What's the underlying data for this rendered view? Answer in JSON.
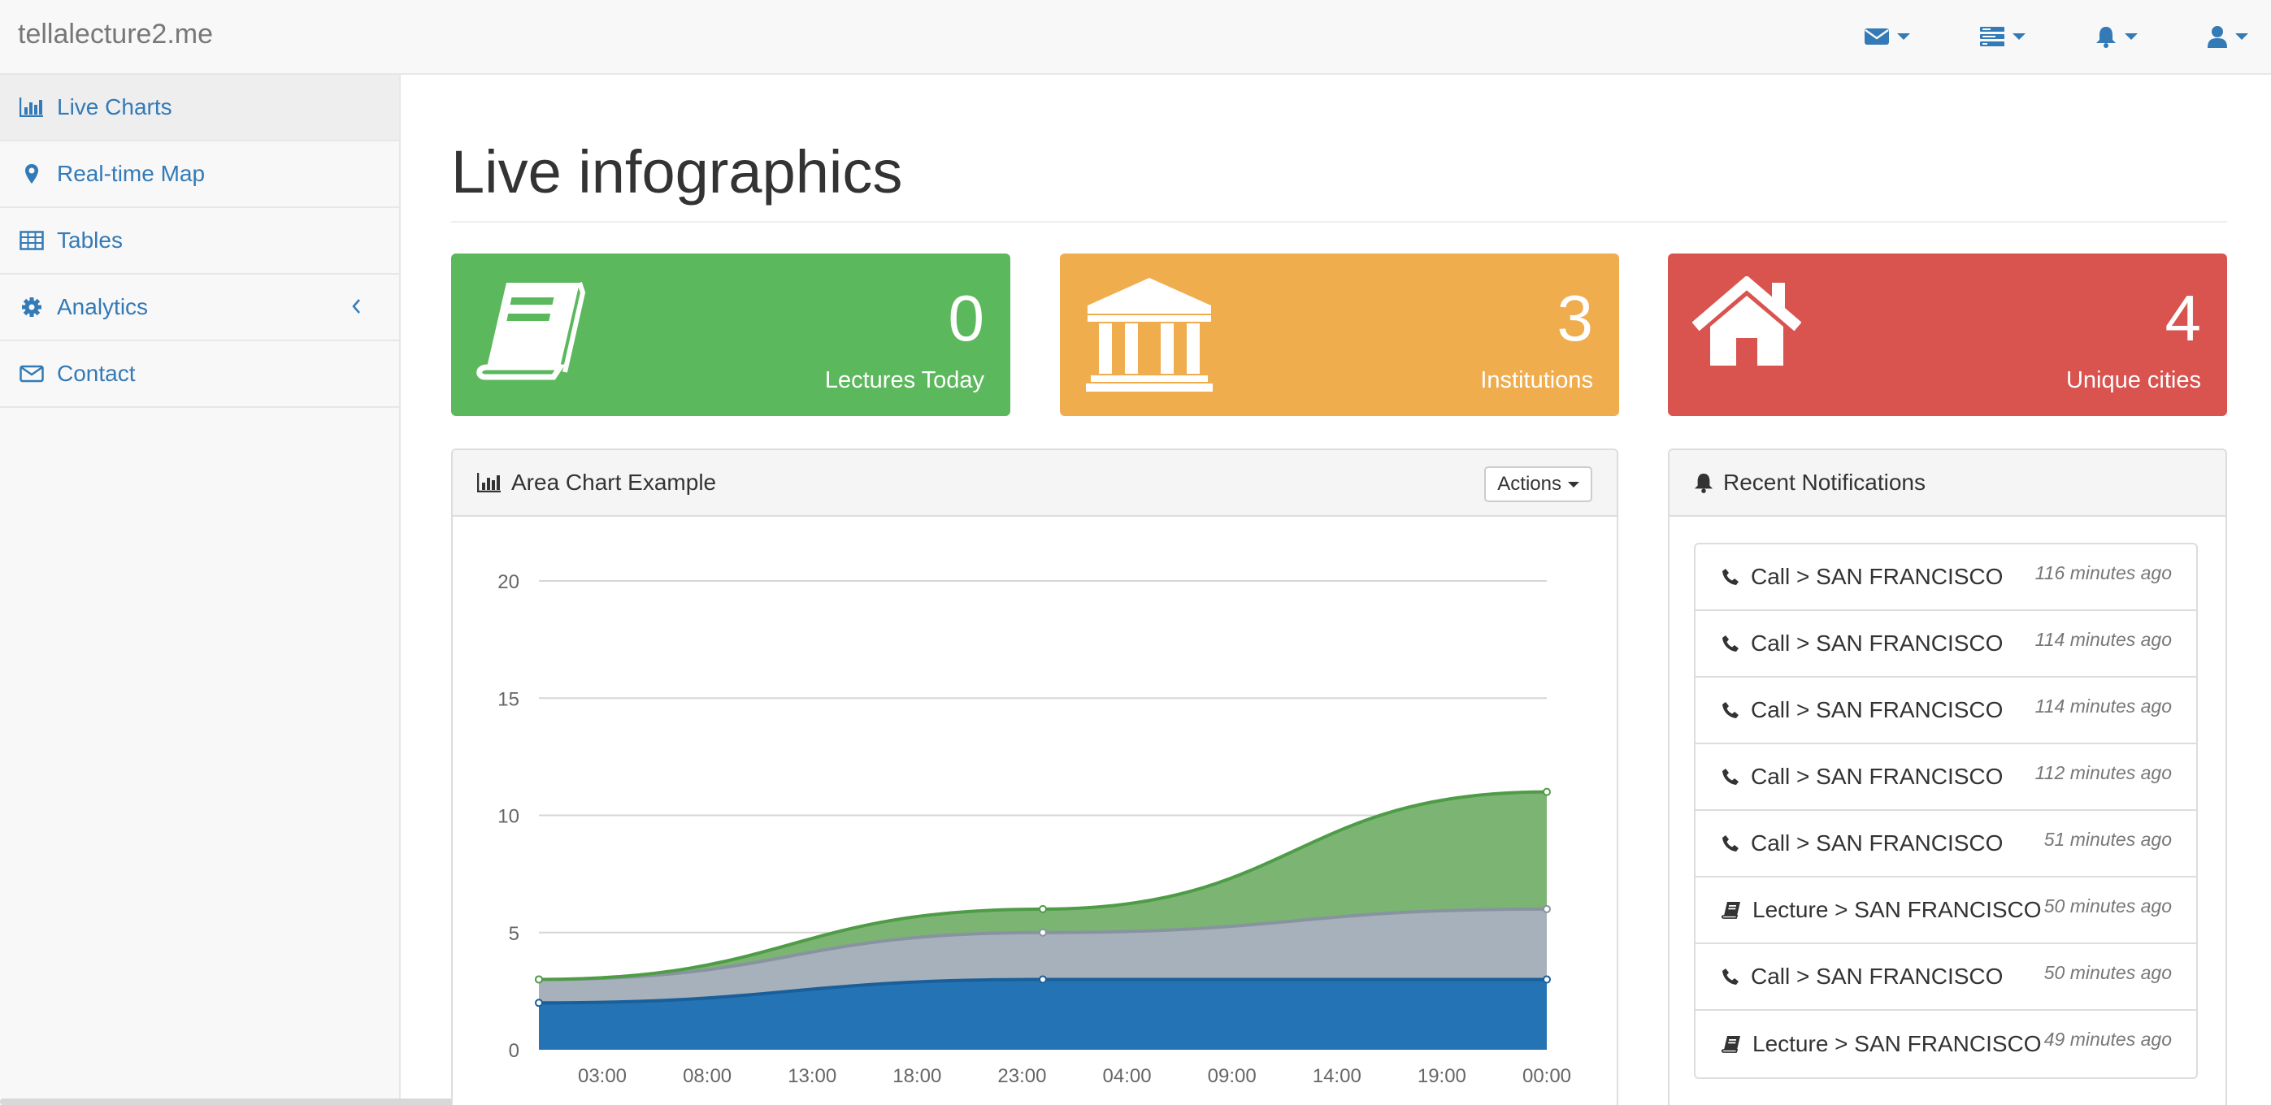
{
  "navbar": {
    "brand": "tellalecture2.me",
    "dropdowns": [
      {
        "icon": "envelope-icon"
      },
      {
        "icon": "tasks-icon"
      },
      {
        "icon": "bell-icon"
      },
      {
        "icon": "user-icon"
      }
    ],
    "accent": "#337ab7"
  },
  "sidebar": {
    "items": [
      {
        "label": "Live Charts",
        "icon": "bar-chart-icon",
        "active": true
      },
      {
        "label": "Real-time Map",
        "icon": "map-marker-icon"
      },
      {
        "label": "Tables",
        "icon": "table-icon"
      },
      {
        "label": "Analytics",
        "icon": "gear-icon"
      },
      {
        "label": "Contact",
        "icon": "envelope-icon"
      }
    ]
  },
  "main": {
    "title": "Live infographics",
    "stats": [
      {
        "value": "0",
        "label": "Lectures Today",
        "color": "#5cb85c",
        "icon": "book-icon"
      },
      {
        "value": "3",
        "label": "Institutions",
        "color": "#f0ad4e",
        "icon": "institution-icon"
      },
      {
        "value": "4",
        "label": "Unique cities",
        "color": "#d9534f",
        "icon": "home-icon"
      }
    ],
    "chart_panel": {
      "title": "Area Chart Example",
      "actions_label": "Actions"
    },
    "notifications_panel": {
      "title": "Recent Notifications",
      "items": [
        {
          "text": "Call > SAN FRANCISCO",
          "time": "116 minutes ago",
          "icon": "phone-icon"
        },
        {
          "text": "Call > SAN FRANCISCO",
          "time": "114 minutes ago",
          "icon": "phone-icon"
        },
        {
          "text": "Call > SAN FRANCISCO",
          "time": "114 minutes ago",
          "icon": "phone-icon"
        },
        {
          "text": "Call > SAN FRANCISCO",
          "time": "112 minutes ago",
          "icon": "phone-icon"
        },
        {
          "text": "Call > SAN FRANCISCO",
          "time": "51 minutes ago",
          "icon": "phone-icon"
        },
        {
          "text": "Lecture > SAN FRANCISCO",
          "time": "50 minutes ago",
          "icon": "book-icon"
        },
        {
          "text": "Call > SAN FRANCISCO",
          "time": "50 minutes ago",
          "icon": "phone-icon"
        },
        {
          "text": "Lecture > SAN FRANCISCO",
          "time": "49 minutes ago",
          "icon": "book-icon"
        }
      ]
    }
  },
  "chart_data": {
    "type": "area",
    "stacked": true,
    "ylim": [
      0,
      20
    ],
    "yticks": [
      "0",
      "5",
      "10",
      "15",
      "20"
    ],
    "xticks": [
      "03:00",
      "08:00",
      "13:00",
      "18:00",
      "23:00",
      "04:00",
      "09:00",
      "14:00",
      "19:00",
      "00:00"
    ],
    "grid": true,
    "series": [
      {
        "color": "#2474b5",
        "points": [
          {
            "x": "00:00",
            "y": 2
          },
          {
            "x": "23:00",
            "y": 3
          },
          {
            "x": "00:00",
            "y": 3
          }
        ]
      },
      {
        "color": "#a6b1bb",
        "points": [
          {
            "x": "00:00",
            "y": 1
          },
          {
            "x": "23:00",
            "y": 2
          },
          {
            "x": "00:00",
            "y": 3
          }
        ]
      },
      {
        "color": "#7cb474",
        "points": [
          {
            "x": "00:00",
            "y": 0
          },
          {
            "x": "23:00",
            "y": 1
          },
          {
            "x": "00:00",
            "y": 5
          }
        ]
      }
    ]
  }
}
